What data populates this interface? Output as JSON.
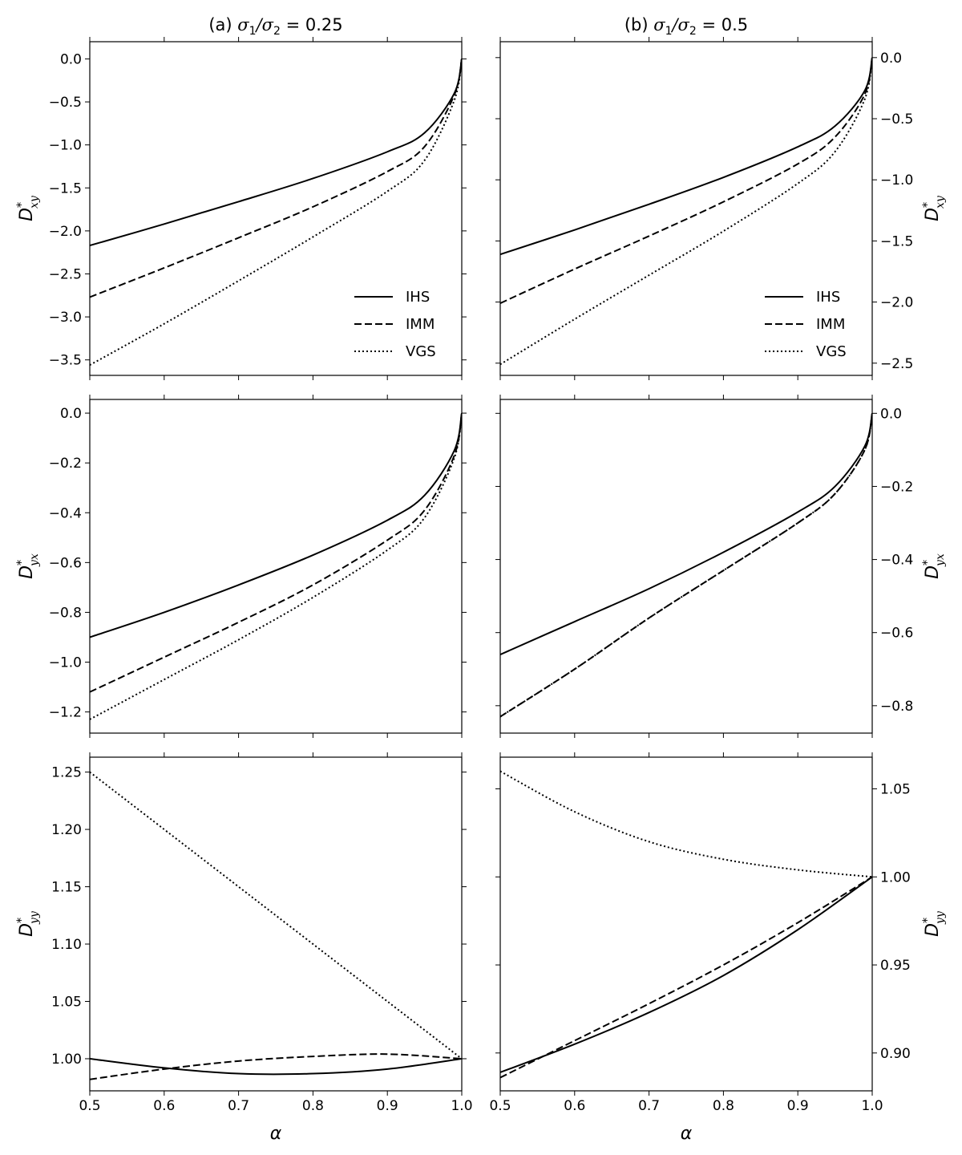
{
  "figure": {
    "col_titles": [
      {
        "prefix": "(a) ",
        "math": "σ",
        "sub1": "1",
        "mid": "/σ",
        "sub2": "2",
        "rest": " = 0.25"
      },
      {
        "prefix": "(b) ",
        "math": "σ",
        "sub1": "1",
        "mid": "/σ",
        "sub2": "2",
        "rest": " = 0.5"
      }
    ],
    "xlabel": "α",
    "colors": {
      "line": "#000000",
      "background": "#ffffff"
    }
  },
  "chart_data": [
    {
      "type": "line",
      "row": 0,
      "col": 0,
      "ylabel_main": "D",
      "ylabel_sup": "*",
      "ylabel_sub": "xy",
      "xlim": [
        0.5,
        1.0
      ],
      "ylim": [
        -3.68,
        0.2
      ],
      "xticks": [
        0.5,
        0.6,
        0.7,
        0.8,
        0.9,
        1.0
      ],
      "xtick_labels": [
        "0.5",
        "0.6",
        "0.7",
        "0.8",
        "0.9",
        "1.0"
      ],
      "yticks": [
        0.0,
        -0.5,
        -1.0,
        -1.5,
        -2.0,
        -2.5,
        -3.0,
        -3.5
      ],
      "ytick_labels": [
        "0.0",
        "−0.5",
        "−1.0",
        "−1.5",
        "−2.0",
        "−2.5",
        "−3.0",
        "−3.5"
      ],
      "yaxis_side": "left",
      "show_xticklabels": false,
      "legend": true,
      "legend_position": "lower-right",
      "x": [
        0.5,
        0.6,
        0.7,
        0.8,
        0.9,
        0.95,
        0.99,
        1.0
      ],
      "series": [
        {
          "name": "IHS",
          "style": "solid",
          "values": [
            -2.17,
            -1.92,
            -1.66,
            -1.39,
            -1.08,
            -0.86,
            -0.4,
            0.0
          ]
        },
        {
          "name": "IMM",
          "style": "dashed",
          "values": [
            -2.77,
            -2.43,
            -2.08,
            -1.72,
            -1.31,
            -1.02,
            -0.42,
            0.0
          ]
        },
        {
          "name": "VGS",
          "style": "dotted",
          "values": [
            -3.56,
            -3.08,
            -2.58,
            -2.07,
            -1.54,
            -1.18,
            -0.48,
            0.0
          ]
        }
      ]
    },
    {
      "type": "line",
      "row": 0,
      "col": 1,
      "ylabel_main": "D",
      "ylabel_sup": "*",
      "ylabel_sub": "xy",
      "xlim": [
        0.5,
        1.0
      ],
      "ylim": [
        -2.6,
        0.13
      ],
      "xticks": [
        0.5,
        0.6,
        0.7,
        0.8,
        0.9,
        1.0
      ],
      "xtick_labels": [
        "0.5",
        "0.6",
        "0.7",
        "0.8",
        "0.9",
        "1.0"
      ],
      "yticks": [
        0.0,
        -0.5,
        -1.0,
        -1.5,
        -2.0,
        -2.5
      ],
      "ytick_labels": [
        "0.0",
        "−0.5",
        "−1.0",
        "−1.5",
        "−2.0",
        "−2.5"
      ],
      "yaxis_side": "right",
      "show_xticklabels": false,
      "legend": true,
      "legend_position": "lower-right",
      "x": [
        0.5,
        0.6,
        0.7,
        0.8,
        0.9,
        0.95,
        0.99,
        1.0
      ],
      "series": [
        {
          "name": "IHS",
          "style": "solid",
          "values": [
            -1.61,
            -1.41,
            -1.2,
            -0.98,
            -0.73,
            -0.56,
            -0.27,
            0.0
          ]
        },
        {
          "name": "IMM",
          "style": "dashed",
          "values": [
            -2.01,
            -1.73,
            -1.46,
            -1.18,
            -0.87,
            -0.65,
            -0.3,
            0.0
          ]
        },
        {
          "name": "VGS",
          "style": "dotted",
          "values": [
            -2.51,
            -2.14,
            -1.78,
            -1.42,
            -1.03,
            -0.77,
            -0.34,
            0.0
          ]
        }
      ]
    },
    {
      "type": "line",
      "row": 1,
      "col": 0,
      "ylabel_main": "D",
      "ylabel_sup": "*",
      "ylabel_sub": "yx",
      "xlim": [
        0.5,
        1.0
      ],
      "ylim": [
        -1.285,
        0.055
      ],
      "xticks": [
        0.5,
        0.6,
        0.7,
        0.8,
        0.9,
        1.0
      ],
      "xtick_labels": [
        "0.5",
        "0.6",
        "0.7",
        "0.8",
        "0.9",
        "1.0"
      ],
      "yticks": [
        0.0,
        -0.2,
        -0.4,
        -0.6,
        -0.8,
        -1.0,
        -1.2
      ],
      "ytick_labels": [
        "0.0",
        "−0.2",
        "−0.4",
        "−0.6",
        "−0.8",
        "−1.0",
        "−1.2"
      ],
      "yaxis_side": "left",
      "show_xticklabels": false,
      "legend": false,
      "x": [
        0.5,
        0.6,
        0.7,
        0.8,
        0.9,
        0.95,
        0.99,
        1.0
      ],
      "series": [
        {
          "name": "IHS",
          "style": "solid",
          "values": [
            -0.9,
            -0.8,
            -0.69,
            -0.57,
            -0.43,
            -0.33,
            -0.15,
            0.0
          ]
        },
        {
          "name": "IMM",
          "style": "dashed",
          "values": [
            -1.12,
            -0.98,
            -0.84,
            -0.69,
            -0.51,
            -0.39,
            -0.17,
            0.0
          ]
        },
        {
          "name": "VGS",
          "style": "dotted",
          "values": [
            -1.23,
            -1.07,
            -0.91,
            -0.74,
            -0.55,
            -0.42,
            -0.18,
            0.0
          ]
        }
      ]
    },
    {
      "type": "line",
      "row": 1,
      "col": 1,
      "ylabel_main": "D",
      "ylabel_sup": "*",
      "ylabel_sub": "yx",
      "xlim": [
        0.5,
        1.0
      ],
      "ylim": [
        -0.875,
        0.038
      ],
      "xticks": [
        0.5,
        0.6,
        0.7,
        0.8,
        0.9,
        1.0
      ],
      "xtick_labels": [
        "0.5",
        "0.6",
        "0.7",
        "0.8",
        "0.9",
        "1.0"
      ],
      "yticks": [
        0.0,
        -0.2,
        -0.4,
        -0.6,
        -0.8
      ],
      "ytick_labels": [
        "0.0",
        "−0.2",
        "−0.4",
        "−0.6",
        "−0.8"
      ],
      "yaxis_side": "right",
      "show_xticklabels": false,
      "legend": false,
      "x": [
        0.5,
        0.6,
        0.7,
        0.8,
        0.9,
        0.95,
        0.99,
        1.0
      ],
      "series": [
        {
          "name": "IHS",
          "style": "solid",
          "values": [
            -0.66,
            -0.57,
            -0.48,
            -0.38,
            -0.27,
            -0.2,
            -0.09,
            0.0
          ]
        },
        {
          "name": "IMM",
          "style": "dashed",
          "values": [
            -0.83,
            -0.7,
            -0.56,
            -0.43,
            -0.3,
            -0.22,
            -0.1,
            0.0
          ]
        },
        {
          "name": "VGS",
          "style": "dotted",
          "values": [
            -0.83,
            -0.7,
            -0.56,
            -0.43,
            -0.3,
            -0.22,
            -0.1,
            0.0
          ]
        }
      ]
    },
    {
      "type": "line",
      "row": 2,
      "col": 0,
      "ylabel_main": "D",
      "ylabel_sup": "*",
      "ylabel_sub": "yy",
      "xlim": [
        0.5,
        1.0
      ],
      "ylim": [
        0.972,
        1.263
      ],
      "xticks": [
        0.5,
        0.6,
        0.7,
        0.8,
        0.9,
        1.0
      ],
      "xtick_labels": [
        "0.5",
        "0.6",
        "0.7",
        "0.8",
        "0.9",
        "1.0"
      ],
      "yticks": [
        1.0,
        1.05,
        1.1,
        1.15,
        1.2,
        1.25
      ],
      "ytick_labels": [
        "1.00",
        "1.05",
        "1.10",
        "1.15",
        "1.20",
        "1.25"
      ],
      "yaxis_side": "left",
      "show_xticklabels": true,
      "legend": false,
      "x": [
        0.5,
        0.6,
        0.7,
        0.8,
        0.9,
        1.0
      ],
      "series": [
        {
          "name": "IHS",
          "style": "solid",
          "values": [
            1.0,
            0.992,
            0.987,
            0.987,
            0.991,
            1.0
          ]
        },
        {
          "name": "IMM",
          "style": "dashed",
          "values": [
            0.982,
            0.991,
            0.998,
            1.002,
            1.004,
            1.0
          ]
        },
        {
          "name": "VGS",
          "style": "dotted",
          "values": [
            1.25,
            1.2,
            1.15,
            1.1,
            1.05,
            1.0
          ]
        }
      ]
    },
    {
      "type": "line",
      "row": 2,
      "col": 1,
      "ylabel_main": "D",
      "ylabel_sup": "*",
      "ylabel_sub": "yy",
      "xlim": [
        0.5,
        1.0
      ],
      "ylim": [
        0.8785,
        1.068
      ],
      "xticks": [
        0.5,
        0.6,
        0.7,
        0.8,
        0.9,
        1.0
      ],
      "xtick_labels": [
        "0.5",
        "0.6",
        "0.7",
        "0.8",
        "0.9",
        "1.0"
      ],
      "yticks": [
        0.9,
        0.95,
        1.0,
        1.05
      ],
      "ytick_labels": [
        "0.90",
        "0.95",
        "1.00",
        "1.05"
      ],
      "yaxis_side": "right",
      "show_xticklabels": true,
      "legend": false,
      "x": [
        0.5,
        0.6,
        0.7,
        0.8,
        0.9,
        1.0
      ],
      "series": [
        {
          "name": "IHS",
          "style": "solid",
          "values": [
            0.889,
            0.905,
            0.923,
            0.944,
            0.97,
            1.0
          ]
        },
        {
          "name": "IMM",
          "style": "dashed",
          "values": [
            0.886,
            0.907,
            0.928,
            0.95,
            0.974,
            1.0
          ]
        },
        {
          "name": "VGS",
          "style": "dotted",
          "values": [
            1.06,
            1.037,
            1.02,
            1.01,
            1.004,
            1.0
          ]
        }
      ]
    }
  ]
}
